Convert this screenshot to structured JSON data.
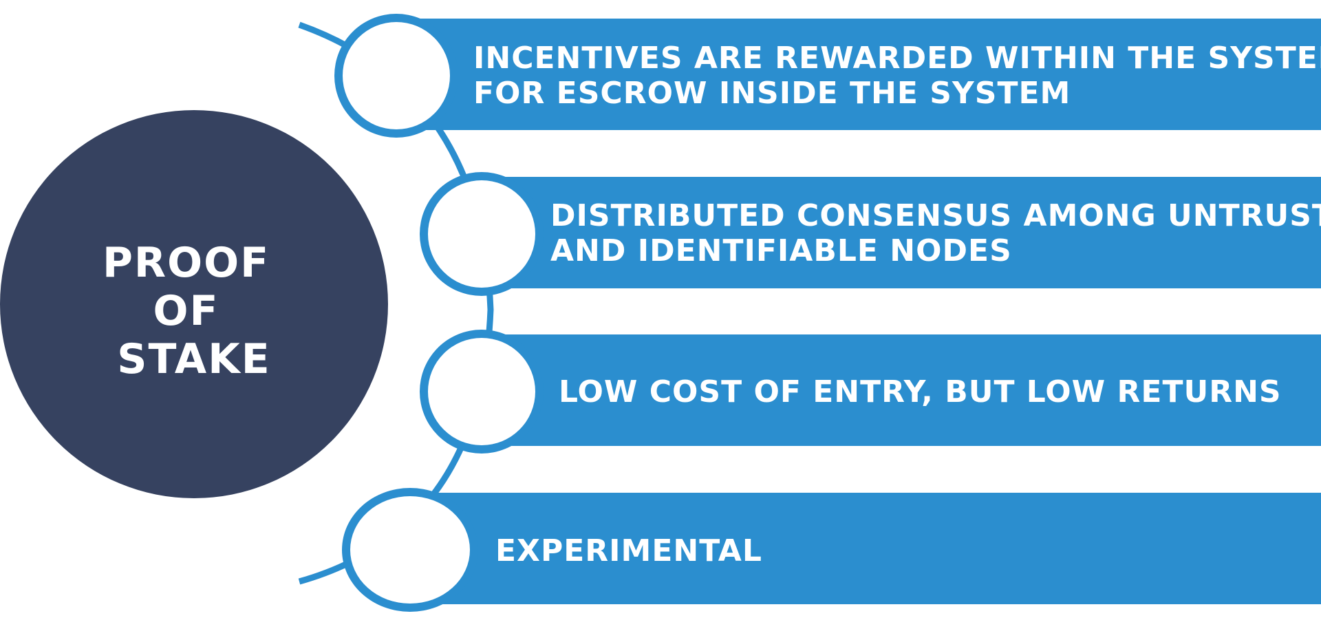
{
  "colors": {
    "hub": "#364260",
    "accent": "#2b8ecf",
    "node_fill": "#ffffff",
    "text": "#ffffff"
  },
  "hub": {
    "lines": [
      "PROOF",
      "OF",
      "STAKE"
    ]
  },
  "items": [
    {
      "lines": [
        "INCENTIVES ARE REWARDED WITHIN THE SYSTEM",
        "FOR ESCROW INSIDE THE SYSTEM"
      ]
    },
    {
      "lines": [
        "DISTRIBUTED CONSENSUS AMONG UNTRUSTED",
        "AND IDENTIFIABLE NODES"
      ]
    },
    {
      "lines": [
        "LOW COST OF ENTRY, BUT LOW RETURNS"
      ]
    },
    {
      "lines": [
        "EXPERIMENTAL"
      ]
    }
  ]
}
